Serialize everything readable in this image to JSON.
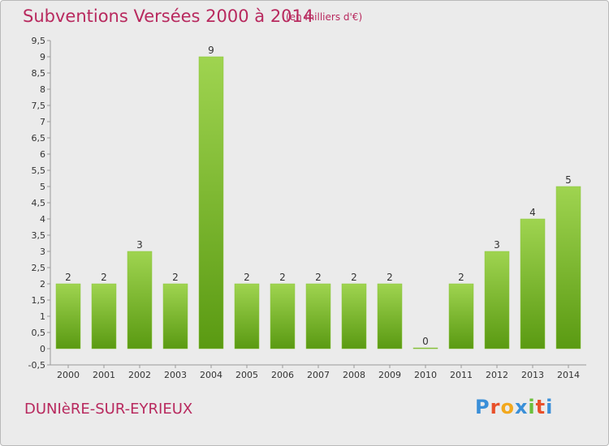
{
  "header": {
    "title": "Subventions Versées 2000 à 2014",
    "subtitle": "(en milliers d'€)"
  },
  "footer": {
    "commune": "DUNIèRE-SUR-EYRIEUX",
    "logo_letters": [
      "P",
      "r",
      "o",
      "x",
      "i",
      "t",
      "i"
    ]
  },
  "colors": {
    "title": "#b8295e",
    "bar_top": "#9fd450",
    "bar_bottom": "#5a9a12",
    "logo": [
      "#3a8fd8",
      "#e8502a",
      "#f2a81d",
      "#3a8fd8",
      "#6bbf3a",
      "#e8502a",
      "#3a8fd8"
    ]
  },
  "chart_data": {
    "type": "bar",
    "categories": [
      "2000",
      "2001",
      "2002",
      "2003",
      "2004",
      "2005",
      "2006",
      "2007",
      "2008",
      "2009",
      "2010",
      "2011",
      "2012",
      "2013",
      "2014"
    ],
    "values": [
      2,
      2,
      3,
      2,
      9,
      2,
      2,
      2,
      2,
      2,
      0,
      2,
      3,
      4,
      5
    ],
    "data_labels": [
      "2",
      "2",
      "3",
      "2",
      "9",
      "2",
      "2",
      "2",
      "2",
      "2",
      "0",
      "2",
      "3",
      "4",
      "5"
    ],
    "ylim": [
      -0.5,
      9.5
    ],
    "yticks": [
      "-0,5",
      "0",
      "0,5",
      "1",
      "1,5",
      "2",
      "2,5",
      "3",
      "3,5",
      "4",
      "4,5",
      "5",
      "5,5",
      "6",
      "6,5",
      "7",
      "7,5",
      "8",
      "8,5",
      "9",
      "9,5"
    ],
    "ytick_values": [
      -0.5,
      0,
      0.5,
      1,
      1.5,
      2,
      2.5,
      3,
      3.5,
      4,
      4.5,
      5,
      5.5,
      6,
      6.5,
      7,
      7.5,
      8,
      8.5,
      9,
      9.5
    ],
    "grid": false,
    "legend": "none",
    "xlabel": "",
    "ylabel": ""
  }
}
